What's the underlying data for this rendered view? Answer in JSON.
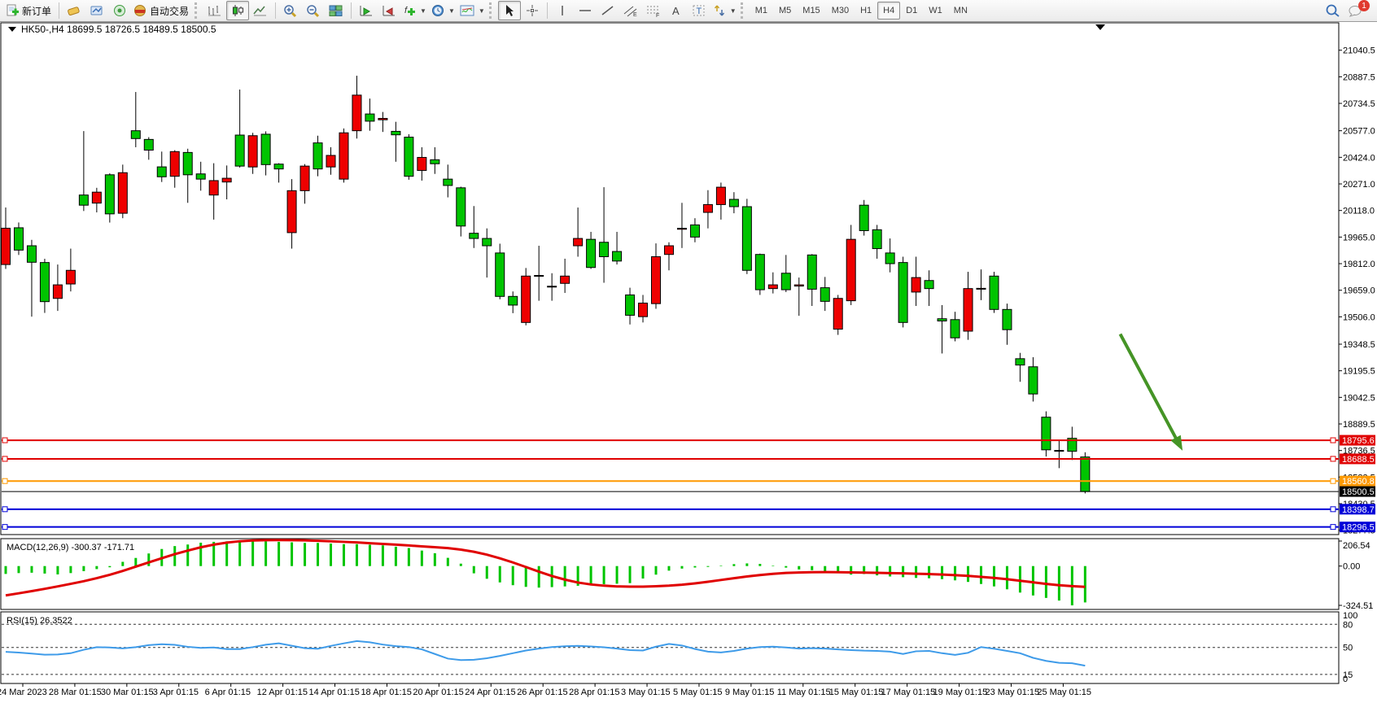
{
  "toolbar": {
    "new_order_label": "新订单",
    "autotrade_label": "自动交易",
    "timeframes": [
      "M1",
      "M5",
      "M15",
      "M30",
      "H1",
      "H4",
      "D1",
      "W1",
      "MN"
    ],
    "timeframe_active": "H4",
    "notification_badge": "1"
  },
  "chart": {
    "title_symbol": "HK50-,H4",
    "title_ohlc": "18699.5 18726.5 18489.5 18500.5",
    "price_axis_labels": [
      "21040.5",
      "20887.5",
      "20734.5",
      "20577.0",
      "20424.0",
      "20271.0",
      "20118.0",
      "19965.0",
      "19812.0",
      "19659.0",
      "19506.0",
      "19348.5",
      "19195.5",
      "19042.5",
      "18889.5",
      "18736.5",
      "18583.5",
      "18430.5",
      "18277.5"
    ],
    "time_axis_labels": [
      "24 Mar 2023",
      "28 Mar 01:15",
      "30 Mar 01:15",
      "3 Apr 01:15",
      "6 Apr 01:15",
      "12 Apr 01:15",
      "14 Apr 01:15",
      "18 Apr 01:15",
      "20 Apr 01:15",
      "24 Apr 01:15",
      "26 Apr 01:15",
      "28 Apr 01:15",
      "3 May 01:15",
      "5 May 01:15",
      "9 May 01:15",
      "11 May 01:15",
      "15 May 01:15",
      "17 May 01:15",
      "19 May 01:15",
      "23 May 01:15",
      "25 May 01:15"
    ],
    "hlines": [
      {
        "price": 18795.6,
        "label": "18795.6",
        "color": "#e00000",
        "width": 2,
        "handles": true
      },
      {
        "price": 18688.5,
        "label": "18688.5",
        "color": "#e00000",
        "width": 2,
        "handles": true
      },
      {
        "price": 18560.8,
        "label": "18560.8",
        "color": "#ff9900",
        "width": 2,
        "handles": true
      },
      {
        "price": 18500.5,
        "label": "18500.5",
        "color": "#000000",
        "width": 1,
        "handles": false
      },
      {
        "price": 18398.7,
        "label": "18398.7",
        "color": "#0000d8",
        "width": 2,
        "handles": true
      },
      {
        "price": 18296.5,
        "label": "18296.5",
        "color": "#0000d8",
        "width": 2,
        "handles": true
      }
    ],
    "arrow": {
      "color": "#459426",
      "from_bar": 85.7,
      "from_price": 19407,
      "to_bar": 90.2,
      "to_price": 18777
    },
    "chart_data": {
      "type": "candlestick",
      "up_color": "#ee0000",
      "down_color": "#00c400",
      "candles": [
        [
          19807,
          20135,
          19782,
          20016
        ],
        [
          20018.5,
          20049,
          19862,
          19890
        ],
        [
          19915,
          19949,
          19507,
          19820
        ],
        [
          19818.5,
          19840,
          19528.5,
          19593.5
        ],
        [
          19612,
          19807,
          19540,
          19690
        ],
        [
          19695,
          19898.5,
          19652,
          19773.5
        ],
        [
          20207,
          20575,
          20115,
          20148.5
        ],
        [
          20160.5,
          20248.5,
          20107,
          20223.5
        ],
        [
          20323.5,
          20332,
          20048.5,
          20098.5
        ],
        [
          20102,
          20382,
          20073.5,
          20335.5
        ],
        [
          20577,
          20800,
          20482,
          20532
        ],
        [
          20527,
          20540,
          20410,
          20465.5
        ],
        [
          20369,
          20457,
          20282,
          20312
        ],
        [
          20315,
          20465,
          20249,
          20457
        ],
        [
          20452,
          20473.5,
          20162,
          20323.5
        ],
        [
          20328.5,
          20398.5,
          20232,
          20298.5
        ],
        [
          20207,
          20390,
          20065.5,
          20290
        ],
        [
          20282,
          20377,
          20182,
          20303.5
        ],
        [
          20552,
          20814,
          20365,
          20373.5
        ],
        [
          20368.5,
          20565,
          20328.5,
          20548.5
        ],
        [
          20557,
          20573.5,
          20320,
          20382
        ],
        [
          20385,
          20390,
          20278.5,
          20357
        ],
        [
          19990.5,
          20298.5,
          19898.5,
          20232
        ],
        [
          20232,
          20385,
          20157,
          20373.5
        ],
        [
          20507,
          20548.5,
          20315,
          20357
        ],
        [
          20368.5,
          20482,
          20323.5,
          20435
        ],
        [
          20298.5,
          20590,
          20278.5,
          20565
        ],
        [
          20577,
          20893.5,
          20532,
          20782
        ],
        [
          20673.5,
          20762,
          20577,
          20632
        ],
        [
          20640,
          20685,
          20570,
          20648
        ],
        [
          20573.5,
          20628.5,
          20398.5,
          20553.5
        ],
        [
          20540,
          20557,
          20295,
          20315
        ],
        [
          20348.5,
          20482,
          20290,
          20423.5
        ],
        [
          20410,
          20482,
          20328.5,
          20387
        ],
        [
          20298.5,
          20382,
          20193.5,
          20262
        ],
        [
          20248.5,
          20255,
          19968.5,
          20028.5
        ],
        [
          19987,
          20143.5,
          19902,
          19957
        ],
        [
          19957,
          20015,
          19732,
          19915
        ],
        [
          19873.5,
          19927,
          19607,
          19623.5
        ],
        [
          19623.5,
          19652,
          19527,
          19573.5
        ],
        [
          19473.5,
          19787,
          19457,
          19740.5
        ],
        [
          19744,
          19915,
          19598.5,
          19743
        ],
        [
          19682,
          19757,
          19598.5,
          19681
        ],
        [
          19698.5,
          19840.5,
          19643.5,
          19740.5
        ],
        [
          19915,
          20135,
          19852,
          19957
        ],
        [
          19952,
          19995,
          19782,
          19790
        ],
        [
          19935,
          20252,
          19702,
          19852
        ],
        [
          19882,
          19995,
          19807,
          19827
        ],
        [
          19632,
          19673.5,
          19462,
          19515
        ],
        [
          19507,
          19632,
          19473.5,
          19585
        ],
        [
          19582,
          19928.5,
          19552,
          19852
        ],
        [
          19865,
          19935,
          19773.5,
          19915
        ],
        [
          20010,
          20162,
          19902,
          20015.5
        ],
        [
          20035,
          20073.5,
          19935,
          19965
        ],
        [
          20107,
          20235,
          20015,
          20152
        ],
        [
          20152,
          20278.5,
          20065.5,
          20252
        ],
        [
          20182,
          20223.5,
          20102,
          20140
        ],
        [
          20140,
          20185,
          19752,
          19773.5
        ],
        [
          19865,
          19870,
          19632,
          19662
        ],
        [
          19668.5,
          19762,
          19640.5,
          19690
        ],
        [
          19757,
          19862,
          19648.5,
          19662
        ],
        [
          19683,
          19732,
          19512,
          19690
        ],
        [
          19862,
          19867,
          19568.5,
          19665
        ],
        [
          19673.5,
          19735.5,
          19540,
          19595
        ],
        [
          19435,
          19632,
          19402,
          19612
        ],
        [
          19598.5,
          20035,
          19573.5,
          19952
        ],
        [
          20148.5,
          20178.5,
          19973.5,
          20002
        ],
        [
          20007,
          20035,
          19840.5,
          19898.5
        ],
        [
          19873.5,
          19957,
          19762,
          19812
        ],
        [
          19818.5,
          19852,
          19445,
          19473.5
        ],
        [
          19648.5,
          19852,
          19568.5,
          19732
        ],
        [
          19715,
          19773.5,
          19568.5,
          19668.5
        ],
        [
          19495,
          19573.5,
          19295,
          19482
        ],
        [
          19490,
          19535,
          19365,
          19385
        ],
        [
          19423.5,
          19765,
          19373.5,
          19668.5
        ],
        [
          19665,
          19778.5,
          19602,
          19670
        ],
        [
          19740.5,
          19765,
          19528.5,
          19548.5
        ],
        [
          19548.5,
          19582,
          19345,
          19432
        ],
        [
          19265,
          19298.5,
          19132,
          19228.5
        ],
        [
          19218.5,
          19273.5,
          19018.5,
          19062
        ],
        [
          18928.5,
          18962,
          18702,
          18740.5
        ],
        [
          18737,
          18795,
          18635,
          18736
        ],
        [
          18807,
          18873.5,
          18682,
          18732
        ],
        [
          18699.5,
          18726.5,
          18489.5,
          18500.5
        ]
      ]
    }
  },
  "macd": {
    "label": "MACD(12,26,9) -300.37 -171.71",
    "axis_labels": [
      "206.54",
      "0.00",
      "-324.51"
    ],
    "histogram_color": "#00c400",
    "signal_color": "#e00000",
    "histogram": [
      -65,
      -58,
      -55,
      -62,
      -69,
      -58,
      -42,
      -25,
      -10,
      35,
      67,
      104,
      141,
      165,
      178,
      193,
      200,
      204,
      206.5,
      206.5,
      204,
      200,
      196,
      191,
      191,
      186,
      181,
      181,
      176,
      171,
      160,
      149,
      128,
      106,
      68,
      20,
      -60,
      -105,
      -135,
      -158,
      -172,
      -178,
      -174,
      -168,
      -163,
      -156,
      -150,
      -146,
      -141,
      -103,
      -71,
      -38,
      -21,
      -12,
      -7,
      4,
      16,
      22,
      18,
      4,
      -13,
      -28,
      -34,
      -49,
      -59,
      -71,
      -66,
      -77,
      -86,
      -92,
      -98,
      -101,
      -108,
      -118,
      -131,
      -148,
      -168,
      -192,
      -219,
      -243,
      -263,
      -285,
      -324.51,
      -300.37
    ],
    "signal": [
      -242,
      -225,
      -207,
      -188,
      -168,
      -147,
      -125,
      -100,
      -72,
      -40,
      -5,
      30,
      65,
      98,
      128,
      155,
      177,
      194,
      205,
      211,
      214,
      215,
      214,
      212,
      209,
      205,
      200,
      195,
      189,
      183,
      177,
      170,
      163,
      156,
      148,
      136,
      118,
      94,
      64,
      30,
      -8,
      -46,
      -82,
      -112,
      -136,
      -152,
      -162,
      -168,
      -170,
      -170,
      -167,
      -162,
      -154,
      -143,
      -130,
      -115,
      -100,
      -86,
      -74,
      -64,
      -57,
      -53,
      -51,
      -50,
      -51,
      -52,
      -54,
      -56,
      -58,
      -60,
      -63,
      -66,
      -70,
      -75,
      -81,
      -89,
      -98,
      -109,
      -121,
      -134,
      -147,
      -158,
      -166,
      -171.71
    ]
  },
  "rsi": {
    "label": "RSI(15) 26.3522",
    "axis_labels": [
      "100",
      "80",
      "50",
      "15",
      "0"
    ],
    "levels": [
      80,
      50,
      15
    ],
    "line_color": "#3e9be9",
    "values": [
      44.3,
      43.4,
      42,
      40.6,
      40.9,
      42.5,
      47,
      50.3,
      50,
      48.8,
      50.3,
      53,
      54.2,
      53.4,
      50.8,
      49.4,
      50,
      47.8,
      47.9,
      50.4,
      53.5,
      55.3,
      52.2,
      49,
      48.3,
      52,
      55.3,
      58.2,
      56.7,
      53.7,
      51.7,
      50.5,
      47.5,
      41.5,
      35.5,
      33.6,
      34,
      36,
      39,
      42.5,
      46,
      48.5,
      50.5,
      51.5,
      52,
      51.3,
      50.2,
      48.5,
      46.5,
      46,
      51,
      54.5,
      52.5,
      48,
      44.5,
      43.5,
      45.5,
      48.5,
      50.5,
      51,
      50,
      48.5,
      49,
      48.5,
      47.5,
      46.5,
      45.8,
      45.5,
      44.5,
      41.5,
      45,
      45.5,
      42.5,
      40.3,
      43,
      50.5,
      48.3,
      45.5,
      42.5,
      36.5,
      32.5,
      30,
      29.5,
      26.35
    ]
  }
}
